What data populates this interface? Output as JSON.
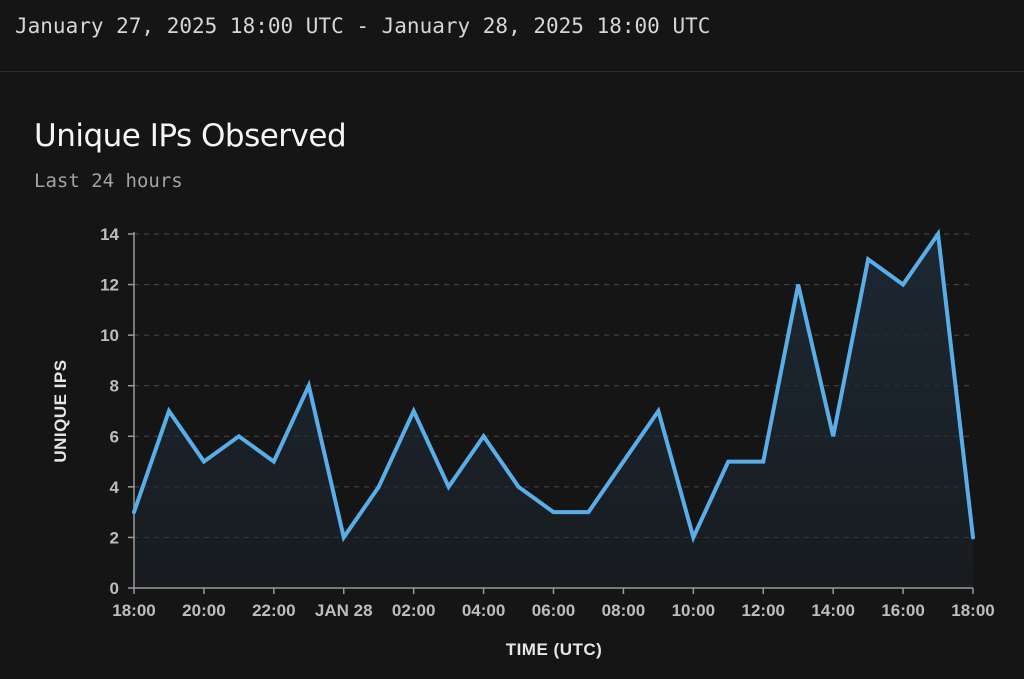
{
  "header": {
    "date_range": "January 27, 2025 18:00 UTC - January 28, 2025 18:00 UTC"
  },
  "colors": {
    "background": "#151515",
    "line": "#5aaee8",
    "area_fill": "#1d2833",
    "grid": "#4a4a4a"
  },
  "chart_data": {
    "type": "area",
    "title": "Unique IPs Observed",
    "subtitle": "Last 24 hours",
    "xlabel": "TIME (UTC)",
    "ylabel": "UNIQUE IPS",
    "ylim": [
      0,
      14
    ],
    "yticks": [
      0,
      2,
      4,
      6,
      8,
      10,
      12,
      14
    ],
    "grid": "horizontal-dashed",
    "x": [
      "18:00",
      "19:00",
      "20:00",
      "21:00",
      "22:00",
      "23:00",
      "00:00",
      "01:00",
      "02:00",
      "03:00",
      "04:00",
      "05:00",
      "06:00",
      "07:00",
      "08:00",
      "09:00",
      "10:00",
      "11:00",
      "12:00",
      "13:00",
      "14:00",
      "15:00",
      "16:00",
      "17:00",
      "18:00"
    ],
    "xtick_labels": [
      "18:00",
      "20:00",
      "22:00",
      "JAN 28",
      "02:00",
      "04:00",
      "06:00",
      "08:00",
      "10:00",
      "12:00",
      "14:00",
      "16:00",
      "18:00"
    ],
    "series": [
      {
        "values": [
          3,
          7,
          5,
          6,
          5,
          8,
          2,
          4,
          7,
          4,
          6,
          4,
          3,
          3,
          5,
          7,
          2,
          5,
          5,
          12,
          6,
          13,
          12,
          14,
          2
        ]
      }
    ]
  }
}
